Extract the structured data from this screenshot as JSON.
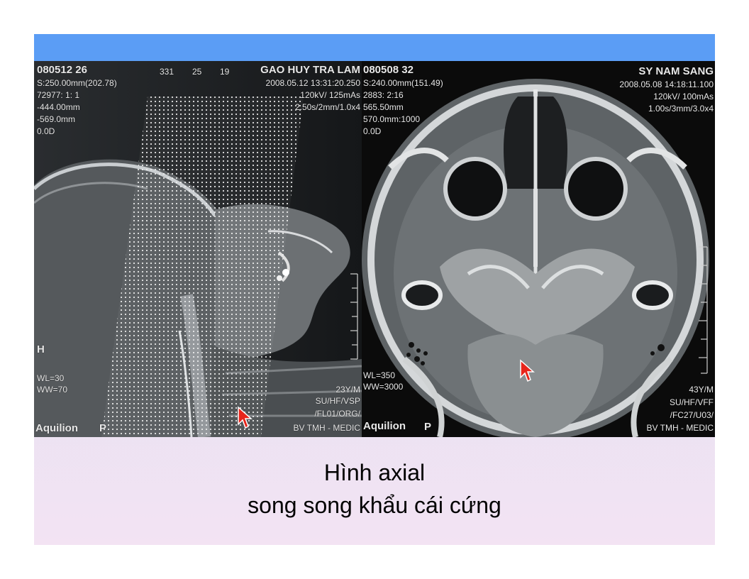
{
  "left_panel": {
    "header_id": "080512 26",
    "header_patient": "GAO HUY TRA LAM",
    "ruler_ticks": [
      "331",
      "25",
      "19"
    ],
    "info_left": [
      "S:250.00mm(202.78)",
      "72977: 1: 1",
      "-444.00mm",
      "-569.0mm",
      "0.0D"
    ],
    "info_right": [
      "2008.05.12 13:31:20.250",
      "120kV/ 125mAs",
      "2.50s/2mm/1.0x4"
    ],
    "orientation": "H",
    "window_level": "WL=30",
    "window_width": "WW=70",
    "footer_right": [
      "23Y/M",
      "SU/HF/VSP",
      "/FL01/ORG/",
      "BV TMH - MEDIC"
    ],
    "footer_left": "Aquilion",
    "footer_p": "P"
  },
  "right_panel": {
    "header_id": "080508 32",
    "header_patient": "SY NAM SANG",
    "info_left": [
      "S:240.00mm(151.49)",
      "2883: 2:16",
      "565.50mm",
      "570.0mm:1000",
      "0.0D"
    ],
    "info_right": [
      "2008.05.08 14:18:11.100",
      "120kV/ 100mAs",
      "1.00s/3mm/3.0x4"
    ],
    "window_level": "WL=350",
    "window_width": "WW=3000",
    "footer_right": [
      "43Y/M",
      "SU/HF/VFF",
      "/FC27/U03/",
      "BV TMH - MEDIC"
    ],
    "footer_left": "Aquilion",
    "footer_p": "P"
  },
  "caption": {
    "line1": "Hình axial",
    "line2": "song song khẩu cái cứng"
  },
  "colors": {
    "top_bar": "#5b9df5",
    "cursor": "#e8251b"
  }
}
